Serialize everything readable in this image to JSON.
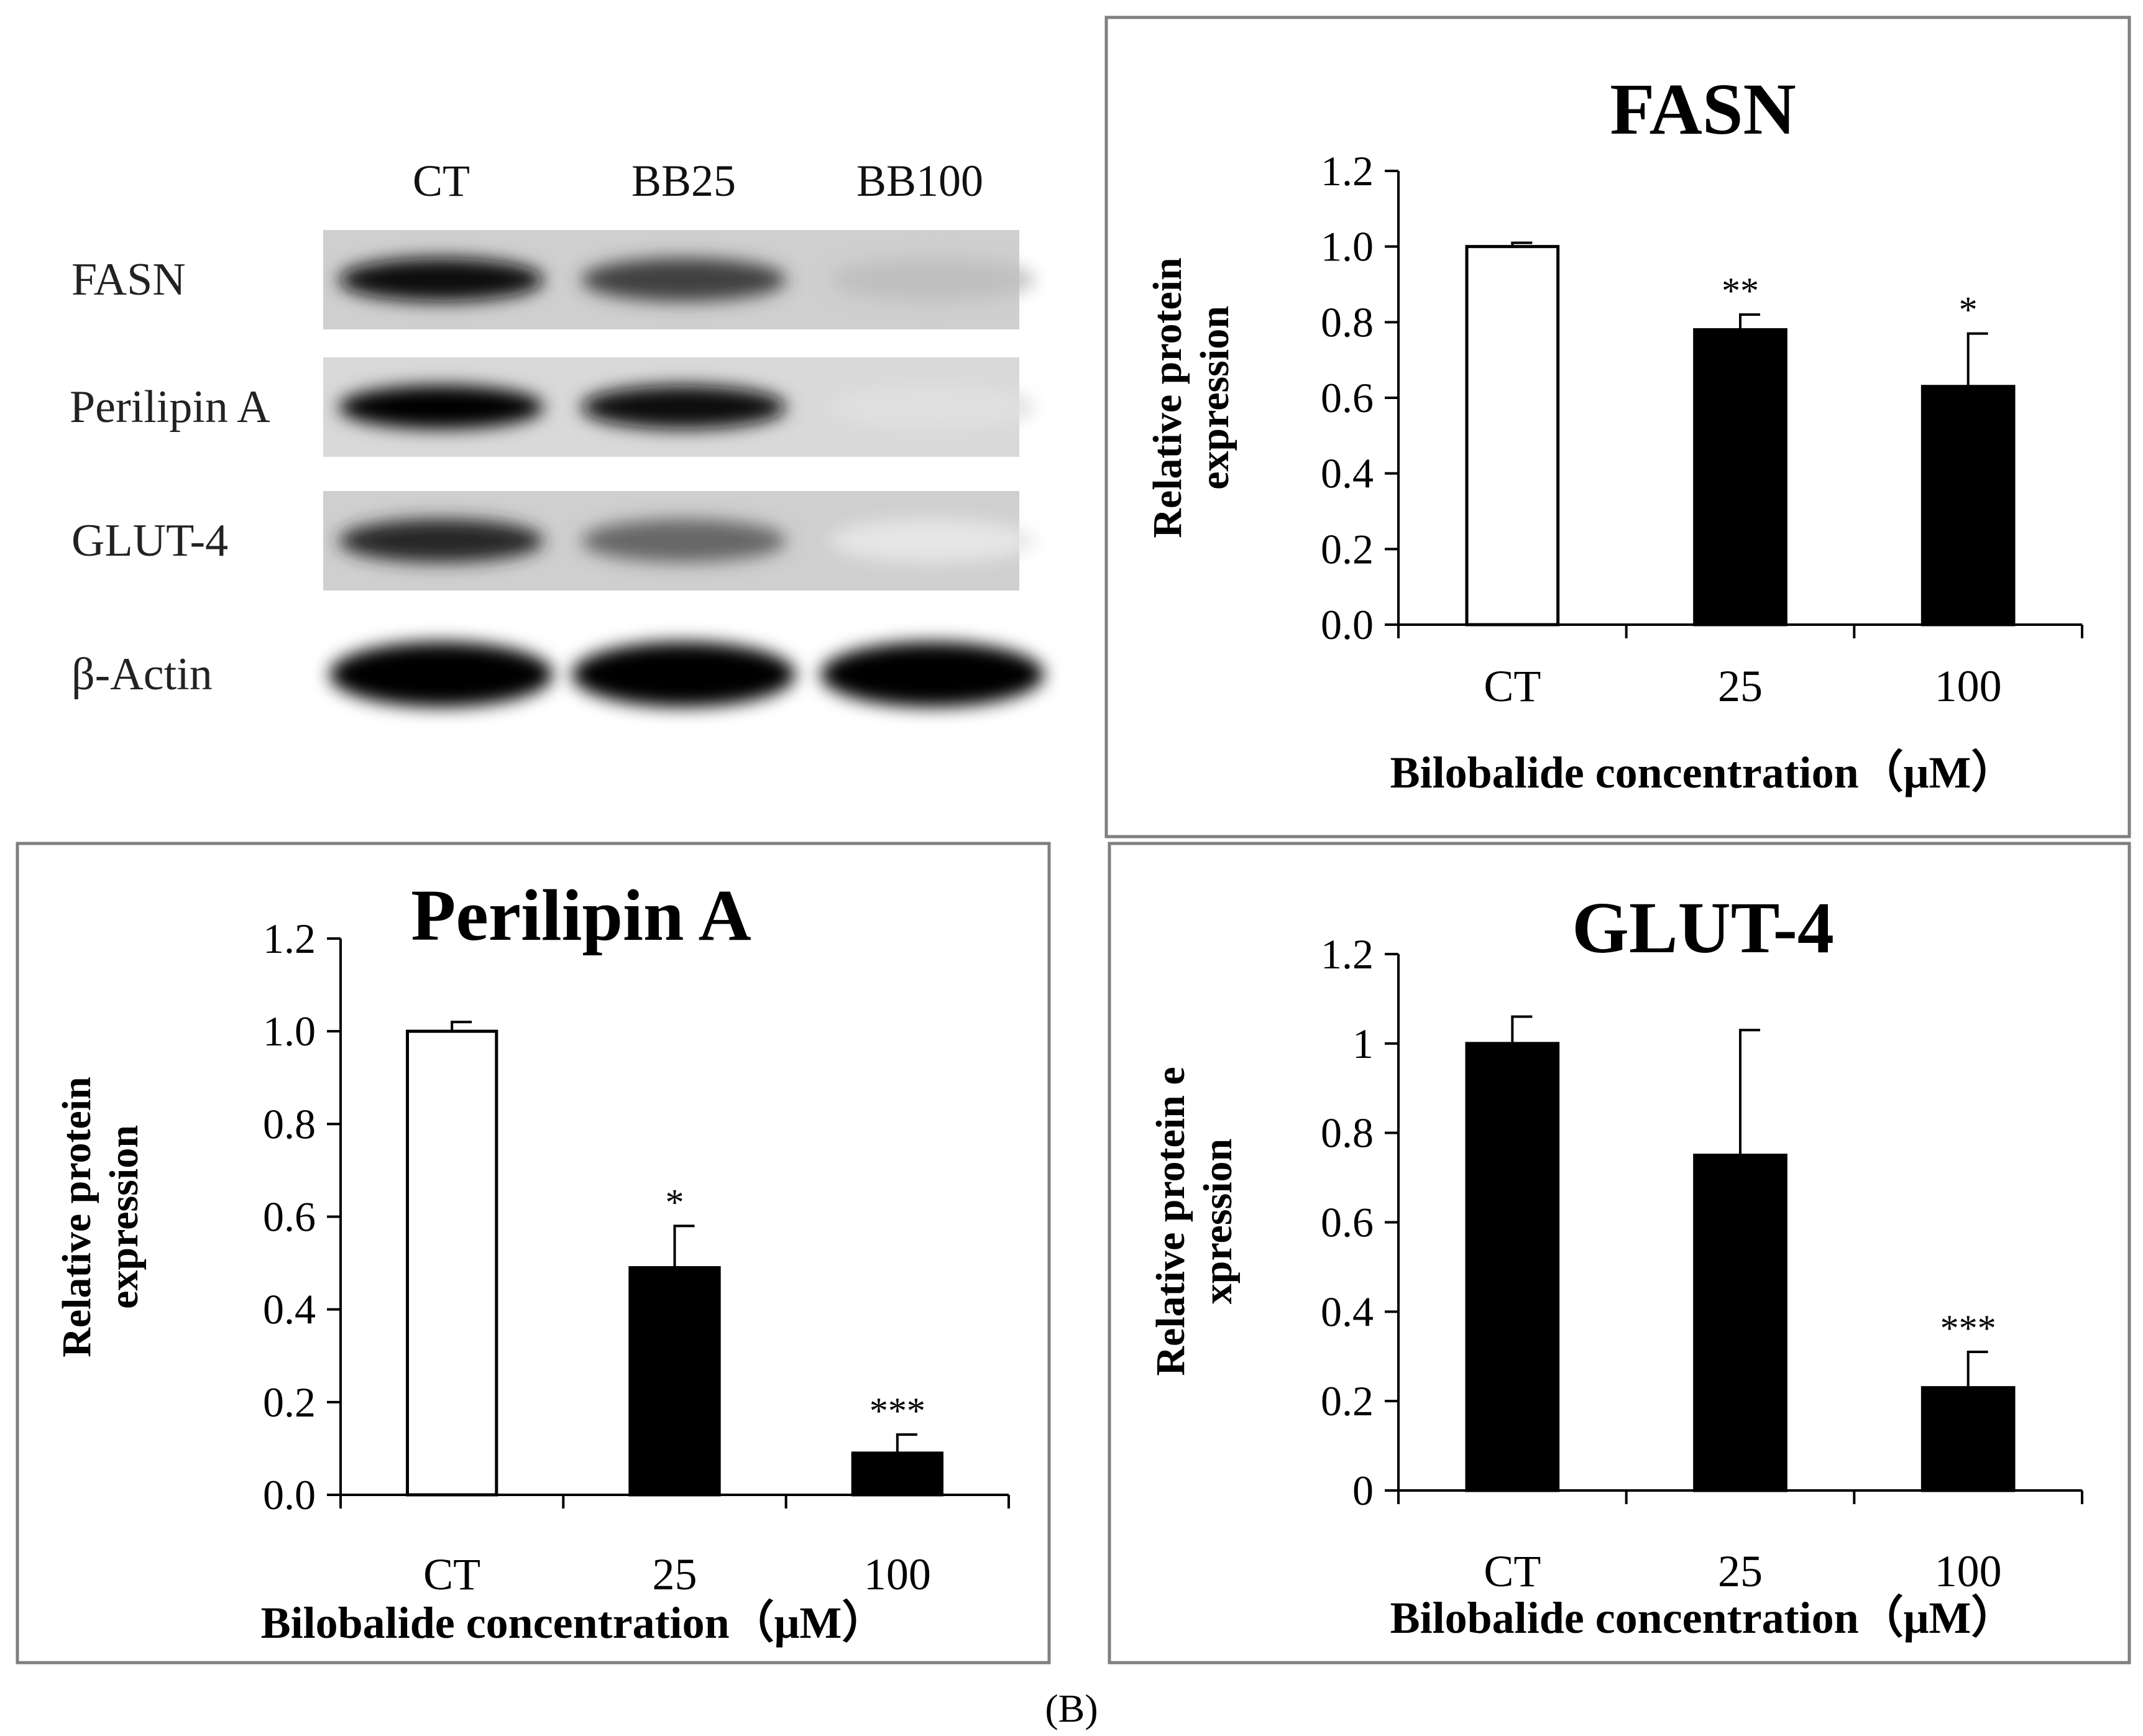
{
  "figure": {
    "caption": "(B)"
  },
  "blot": {
    "lanes": [
      "CT",
      "BB25",
      "BB100"
    ],
    "rows": [
      {
        "label": "FASN",
        "intensities": [
          0.95,
          0.75,
          0.25
        ]
      },
      {
        "label": "Perilipin A",
        "intensities": [
          1.0,
          0.95,
          0.12
        ]
      },
      {
        "label": "GLUT-4",
        "intensities": [
          0.85,
          0.6,
          0.1
        ]
      },
      {
        "label": "β-Actin",
        "intensities": [
          1.0,
          1.0,
          1.0
        ]
      }
    ]
  },
  "colors": {
    "filled_bar": "#000000",
    "control_bar": "#ffffff",
    "frame": "#7f7f7f"
  },
  "chart_data": [
    {
      "type": "bar",
      "title": "FASN",
      "ylabel": [
        "Relative protein",
        "expression"
      ],
      "xlabel": "Bilobalide concentration（μM）",
      "categories": [
        "CT",
        "25",
        "100"
      ],
      "values": [
        1.0,
        0.78,
        0.63
      ],
      "errors": [
        0.01,
        0.04,
        0.14
      ],
      "significance": [
        "",
        "**",
        "*"
      ],
      "fills": [
        "white",
        "black",
        "black"
      ],
      "ylim": [
        0,
        1.2
      ],
      "yticks": [
        "0.0",
        "0.2",
        "0.4",
        "0.6",
        "0.8",
        "1.0",
        "1.2"
      ]
    },
    {
      "type": "bar",
      "title": "Perilipin A",
      "ylabel": [
        "Relative protein",
        "expression"
      ],
      "xlabel": "Bilobalide concentration（μM）",
      "categories": [
        "CT",
        "25",
        "100"
      ],
      "values": [
        1.0,
        0.49,
        0.09
      ],
      "errors": [
        0.02,
        0.09,
        0.04
      ],
      "significance": [
        "",
        "*",
        "***"
      ],
      "fills": [
        "white",
        "black",
        "black"
      ],
      "ylim": [
        0,
        1.2
      ],
      "yticks": [
        "0.0",
        "0.2",
        "0.4",
        "0.6",
        "0.8",
        "1.0",
        "1.2"
      ]
    },
    {
      "type": "bar",
      "title": "GLUT-4",
      "ylabel": [
        "Relative protein e",
        "xpression"
      ],
      "xlabel": "Bilobalide concentration（μM）",
      "categories": [
        "CT",
        "25",
        "100"
      ],
      "values": [
        1.0,
        0.75,
        0.23
      ],
      "errors": [
        0.06,
        0.28,
        0.08
      ],
      "significance": [
        "",
        "",
        "***"
      ],
      "fills": [
        "black",
        "black",
        "black"
      ],
      "ylim": [
        0,
        1.2
      ],
      "yticks": [
        "0",
        "0.2",
        "0.4",
        "0.6",
        "0.8",
        "1",
        "1.2"
      ]
    }
  ]
}
